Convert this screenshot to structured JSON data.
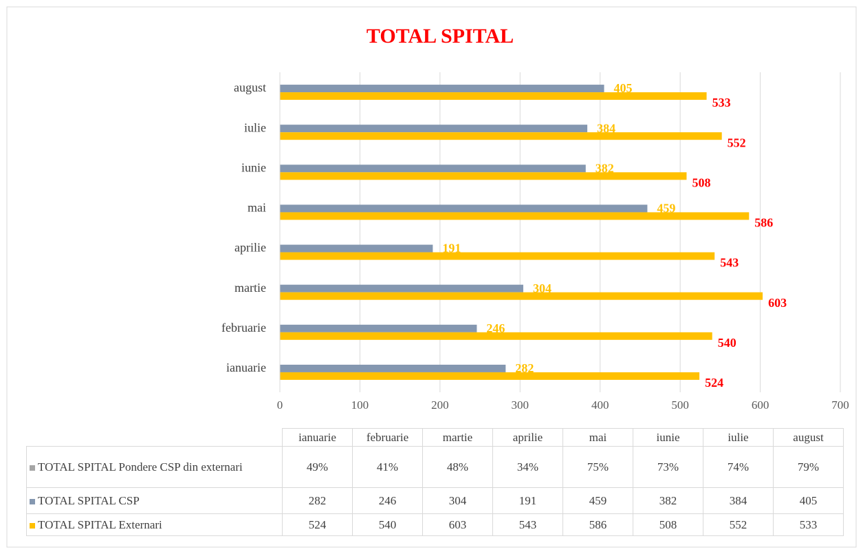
{
  "chart_data": {
    "type": "bar",
    "orientation": "horizontal",
    "title": "TOTAL SPITAL",
    "categories": [
      "ianuarie",
      "februarie",
      "martie",
      "aprilie",
      "mai",
      "iunie",
      "iulie",
      "august"
    ],
    "series": [
      {
        "name": "TOTAL SPITAL Pondere CSP din externari",
        "color": "#a5a5a5",
        "values": [
          49,
          41,
          48,
          34,
          75,
          73,
          74,
          79
        ],
        "value_labels": [
          "49%",
          "41%",
          "48%",
          "34%",
          "75%",
          "73%",
          "74%",
          "79%"
        ]
      },
      {
        "name": "TOTAL SPITAL CSP",
        "color": "#8497b0",
        "label_color": "#ffc000",
        "values": [
          282,
          246,
          304,
          191,
          459,
          382,
          384,
          405
        ]
      },
      {
        "name": "TOTAL SPITAL Externari",
        "color": "#ffc000",
        "label_color": "#ff0000",
        "values": [
          524,
          540,
          603,
          543,
          586,
          508,
          552,
          533
        ]
      }
    ],
    "xlim": [
      0,
      700
    ],
    "xticks": [
      0,
      100,
      200,
      300,
      400,
      500,
      600,
      700
    ],
    "grid": true,
    "data_table": true
  }
}
